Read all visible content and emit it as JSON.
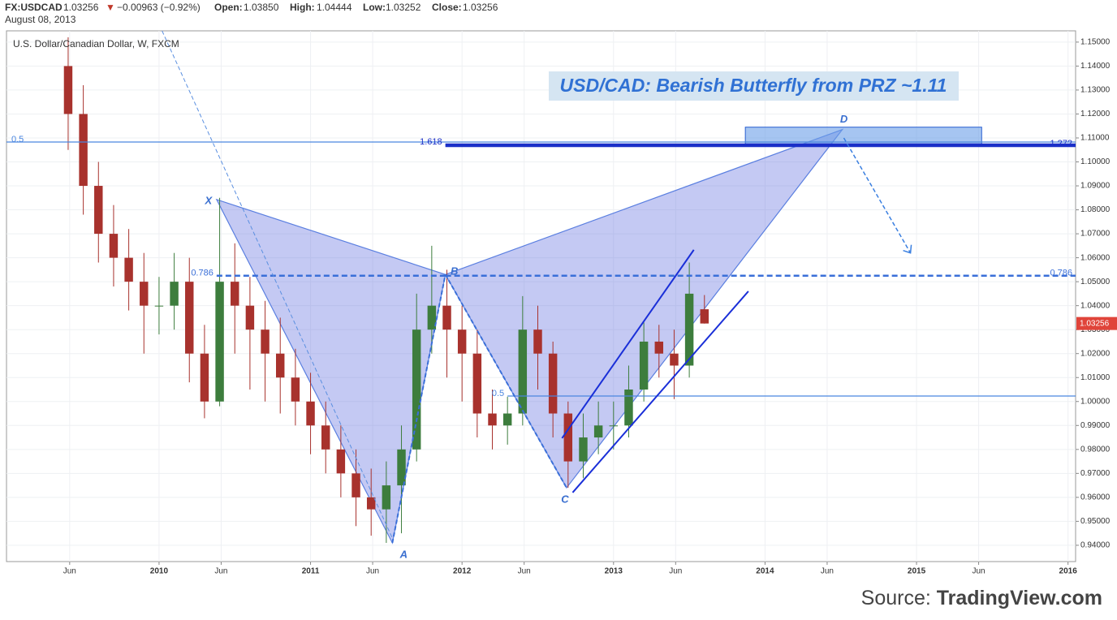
{
  "header": {
    "symbol": "FX:USDCAD",
    "price": "1.03256",
    "arrow": "▼",
    "change": "−0.00963 (−0.92%)",
    "open_label": "Open:",
    "open": "1.03850",
    "high_label": "High:",
    "high": "1.04444",
    "low_label": "Low:",
    "low": "1.03252",
    "close_label": "Close:",
    "close": "1.03256",
    "date": "August 08, 2013"
  },
  "source": {
    "prefix": "Source:",
    "name": "TradingView.com"
  },
  "chart_data": {
    "type": "candlestick",
    "title": "USD/CAD: Bearish Butterfly from PRZ ~1.11",
    "subtitle": "U.S. Dollar/Canadian Dollar, W, FXCM",
    "up_color": "#3d7d3d",
    "down_color": "#a8322d",
    "x": [
      2009.4,
      2009.5,
      2009.6,
      2009.7,
      2009.8,
      2009.9,
      2010.0,
      2010.1,
      2010.2,
      2010.3,
      2010.4,
      2010.5,
      2010.6,
      2010.7,
      2010.8,
      2010.9,
      2011.0,
      2011.1,
      2011.2,
      2011.3,
      2011.4,
      2011.5,
      2011.6,
      2011.7,
      2011.8,
      2011.9,
      2012.0,
      2012.1,
      2012.2,
      2012.3,
      2012.4,
      2012.5,
      2012.6,
      2012.7,
      2012.8,
      2012.9,
      2013.0,
      2013.1,
      2013.2,
      2013.3,
      2013.4,
      2013.5,
      2013.6
    ],
    "open": [
      1.14,
      1.12,
      1.09,
      1.07,
      1.06,
      1.05,
      1.04,
      1.04,
      1.05,
      1.02,
      1.0,
      1.05,
      1.04,
      1.03,
      1.02,
      1.01,
      1.0,
      0.99,
      0.98,
      0.97,
      0.96,
      0.955,
      0.965,
      0.98,
      1.03,
      1.04,
      1.03,
      1.02,
      0.995,
      0.99,
      0.995,
      1.03,
      1.02,
      0.995,
      0.975,
      0.985,
      0.99,
      0.99,
      1.005,
      1.025,
      1.02,
      1.015,
      1.0385
    ],
    "high": [
      1.152,
      1.132,
      1.1,
      1.082,
      1.072,
      1.062,
      1.052,
      1.062,
      1.06,
      1.032,
      1.085,
      1.066,
      1.052,
      1.042,
      1.035,
      1.022,
      1.012,
      1.0,
      0.99,
      0.98,
      0.972,
      0.975,
      0.99,
      1.045,
      1.065,
      1.055,
      1.04,
      1.03,
      1.005,
      1.002,
      1.044,
      1.04,
      1.025,
      1.0,
      0.995,
      1.0,
      1.0,
      1.015,
      1.033,
      1.032,
      1.03,
      1.058,
      1.04444
    ],
    "low": [
      1.105,
      1.078,
      1.058,
      1.048,
      1.038,
      1.02,
      1.028,
      1.03,
      1.008,
      0.993,
      0.998,
      1.02,
      1.005,
      1.0,
      0.995,
      0.99,
      0.978,
      0.97,
      0.96,
      0.948,
      0.944,
      0.941,
      0.945,
      0.975,
      1.02,
      1.01,
      1.0,
      0.985,
      0.98,
      0.982,
      0.99,
      1.005,
      0.985,
      0.964,
      0.968,
      0.978,
      0.98,
      0.985,
      1.0,
      1.01,
      1.001,
      1.01,
      1.03252
    ],
    "close": [
      1.12,
      1.09,
      1.07,
      1.06,
      1.05,
      1.04,
      1.04,
      1.05,
      1.02,
      1.0,
      1.05,
      1.04,
      1.03,
      1.02,
      1.01,
      1.0,
      0.99,
      0.98,
      0.97,
      0.96,
      0.955,
      0.965,
      0.98,
      1.03,
      1.04,
      1.03,
      1.02,
      0.995,
      0.99,
      0.995,
      1.03,
      1.02,
      0.995,
      0.975,
      0.985,
      0.99,
      0.99,
      1.005,
      1.025,
      1.02,
      1.015,
      1.045,
      1.03256
    ],
    "xlim": [
      2008.993,
      2016.05
    ],
    "xticks": [
      {
        "value": 2009.41,
        "label": "Jun"
      },
      2010,
      {
        "value": 2010.41,
        "label": "Jun"
      },
      2011,
      {
        "value": 2011.41,
        "label": "Jun"
      },
      2012,
      {
        "value": 2012.41,
        "label": "Jun"
      },
      2013,
      {
        "value": 2013.41,
        "label": "Jun"
      },
      2014,
      {
        "value": 2014.41,
        "label": "Jun"
      },
      2015,
      {
        "value": 2015.41,
        "label": "Jun"
      },
      2016
    ],
    "ylim": [
      0.9332,
      1.1547
    ],
    "yticks": [
      {
        "value": 0.94,
        "label": "0.94000"
      },
      {
        "value": 0.95,
        "label": "0.95000"
      },
      {
        "value": 0.96,
        "label": "0.96000"
      },
      {
        "value": 0.97,
        "label": "0.97000"
      },
      {
        "value": 0.98,
        "label": "0.98000"
      },
      {
        "value": 0.99,
        "label": "0.99000"
      },
      {
        "value": 1.0,
        "label": "1.00000"
      },
      {
        "value": 1.01,
        "label": "1.01000"
      },
      {
        "value": 1.02,
        "label": "1.02000"
      },
      {
        "value": 1.03,
        "label": "1.03000"
      },
      {
        "value": 1.04,
        "label": "1.04000"
      },
      {
        "value": 1.05,
        "label": "1.05000"
      },
      {
        "value": 1.06,
        "label": "1.06000"
      },
      {
        "value": 1.07,
        "label": "1.07000"
      },
      {
        "value": 1.08,
        "label": "1.08000"
      },
      {
        "value": 1.09,
        "label": "1.09000"
      },
      {
        "value": 1.1,
        "label": "1.10000"
      },
      {
        "value": 1.11,
        "label": "1.11000"
      },
      {
        "value": 1.12,
        "label": "1.12000"
      },
      {
        "value": 1.13,
        "label": "1.13000"
      },
      {
        "value": 1.14,
        "label": "1.14000"
      },
      {
        "value": 1.15,
        "label": "1.15000"
      }
    ],
    "price_tag": {
      "value": 1.03256,
      "label": "1.03256",
      "color": "#e0443a"
    },
    "pattern": {
      "fill": "#6470e0",
      "edge": "#5a7fe0",
      "points": [
        {
          "label": "X",
          "x": 2010.38,
          "y": 1.0843
        },
        {
          "label": "A",
          "x": 2011.54,
          "y": 0.941
        },
        {
          "label": "B",
          "x": 2011.89,
          "y": 1.053
        },
        {
          "label": "C",
          "x": 2012.69,
          "y": 0.964
        },
        {
          "label": "D",
          "x": 2014.51,
          "y": 1.1135
        }
      ]
    },
    "prz": {
      "x": [
        2013.87,
        2015.43
      ],
      "y": [
        1.1073,
        1.1145
      ],
      "color": "#6b9fe8"
    },
    "levels": [
      {
        "label": "0.5",
        "value": 1.1083,
        "x": [
          2008.993,
          2016.05
        ],
        "color": "#4a86e0",
        "width": 1.2,
        "dashed": false,
        "label_at": "start"
      },
      {
        "label": "1.618",
        "value": 1.1073,
        "x": [
          2011.89,
          2016.05
        ],
        "color": "#1a2fc8",
        "width": 2.5,
        "dashed": false,
        "label_at": "start"
      },
      {
        "label": "1.272",
        "value": 1.1066,
        "x": [
          2011.89,
          2016.05
        ],
        "color": "#1a2fc8",
        "width": 2.5,
        "dashed": false,
        "label_at": "end"
      },
      {
        "label": "0.786",
        "value": 1.0525,
        "x": [
          2010.38,
          2011.89
        ],
        "color": "#3a6fd8",
        "width": 2.5,
        "dashed": true,
        "label_at": "start"
      },
      {
        "label": "0.786",
        "value": 1.0525,
        "x": [
          2011.89,
          2016.05
        ],
        "color": "#3a6fd8",
        "width": 2.5,
        "dashed": true,
        "label_at": "end"
      },
      {
        "label": "0.5",
        "value": 1.0023,
        "x": [
          2012.3,
          2016.05
        ],
        "color": "#4a86e0",
        "width": 1.2,
        "dashed": false,
        "label_at": "start"
      }
    ],
    "trendlines": [
      {
        "x": [
          2010.02,
          2011.54
        ],
        "y": [
          1.1547,
          0.943
        ],
        "color": "#5a8fe0",
        "width": 1,
        "dashed": true
      },
      {
        "x": [
          2011.54,
          2011.89
        ],
        "y": [
          0.941,
          1.053
        ],
        "color": "#3a6fd8",
        "width": 2,
        "dashed": true
      },
      {
        "x": [
          2011.89,
          2012.69
        ],
        "y": [
          1.053,
          0.964
        ],
        "color": "#3a6fd8",
        "width": 2,
        "dashed": true
      },
      {
        "x": [
          2012.66,
          2013.53
        ],
        "y": [
          0.9847,
          1.0633
        ],
        "color": "#1a2fd8",
        "width": 2,
        "dashed": false
      },
      {
        "x": [
          2012.73,
          2013.89
        ],
        "y": [
          0.962,
          1.046
        ],
        "color": "#1a2fd8",
        "width": 2,
        "dashed": false
      },
      {
        "x": [
          2014.52,
          2014.96
        ],
        "y": [
          1.11,
          1.062
        ],
        "color": "#3a7fe0",
        "width": 1.5,
        "dashed": true
      }
    ]
  }
}
